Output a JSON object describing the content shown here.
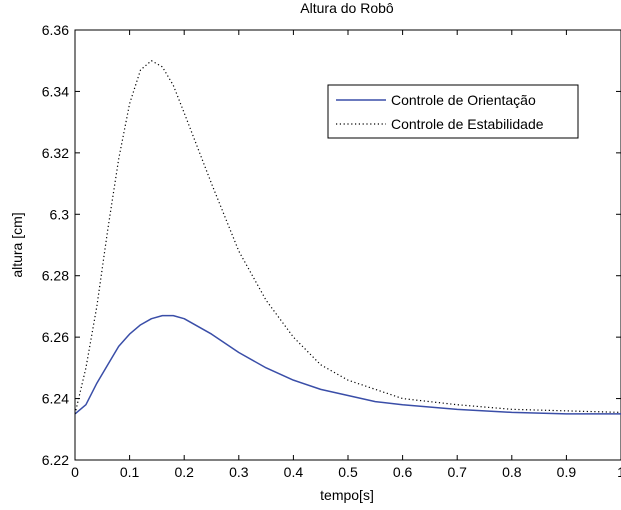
{
  "chart_data": {
    "type": "line",
    "title": "Altura do Robô",
    "xlabel": "tempo[s]",
    "ylabel": "altura [cm]",
    "xlim": [
      0,
      1
    ],
    "ylim": [
      6.22,
      6.36
    ],
    "xticks": [
      0,
      0.1,
      0.2,
      0.3,
      0.4,
      0.5,
      0.6,
      0.7,
      0.8,
      0.9,
      1
    ],
    "xtick_labels": [
      "0",
      "0.1",
      "0.2",
      "0.3",
      "0.4",
      "0.5",
      "0.6",
      "0.7",
      "0.8",
      "0.9",
      "1"
    ],
    "yticks": [
      6.22,
      6.24,
      6.26,
      6.28,
      6.3,
      6.32,
      6.34,
      6.36
    ],
    "ytick_labels": [
      "6.22",
      "6.24",
      "6.26",
      "6.28",
      "6.3",
      "6.32",
      "6.34",
      "6.36"
    ],
    "grid": false,
    "legend_position": "top-right",
    "series": [
      {
        "name": "Controle de Orientação",
        "style": "solid",
        "color": "#3a4ea8",
        "x": [
          0,
          0.02,
          0.04,
          0.06,
          0.08,
          0.1,
          0.12,
          0.14,
          0.16,
          0.18,
          0.2,
          0.25,
          0.3,
          0.35,
          0.4,
          0.45,
          0.5,
          0.55,
          0.6,
          0.7,
          0.8,
          0.9,
          1.0
        ],
        "y": [
          6.235,
          6.238,
          6.245,
          6.251,
          6.257,
          6.261,
          6.264,
          6.266,
          6.267,
          6.267,
          6.266,
          6.261,
          6.255,
          6.25,
          6.246,
          6.243,
          6.241,
          6.239,
          6.238,
          6.2365,
          6.2355,
          6.235,
          6.235
        ]
      },
      {
        "name": "Controle de Estabilidade",
        "style": "dotted",
        "color": "#000000",
        "x": [
          0,
          0.02,
          0.04,
          0.06,
          0.08,
          0.1,
          0.12,
          0.14,
          0.16,
          0.18,
          0.2,
          0.25,
          0.3,
          0.35,
          0.4,
          0.45,
          0.5,
          0.55,
          0.6,
          0.7,
          0.8,
          0.9,
          1.0
        ],
        "y": [
          6.235,
          6.25,
          6.27,
          6.295,
          6.318,
          6.336,
          6.347,
          6.35,
          6.348,
          6.342,
          6.333,
          6.31,
          6.288,
          6.272,
          6.26,
          6.251,
          6.246,
          6.243,
          6.24,
          6.238,
          6.2365,
          6.236,
          6.2355
        ]
      }
    ]
  }
}
